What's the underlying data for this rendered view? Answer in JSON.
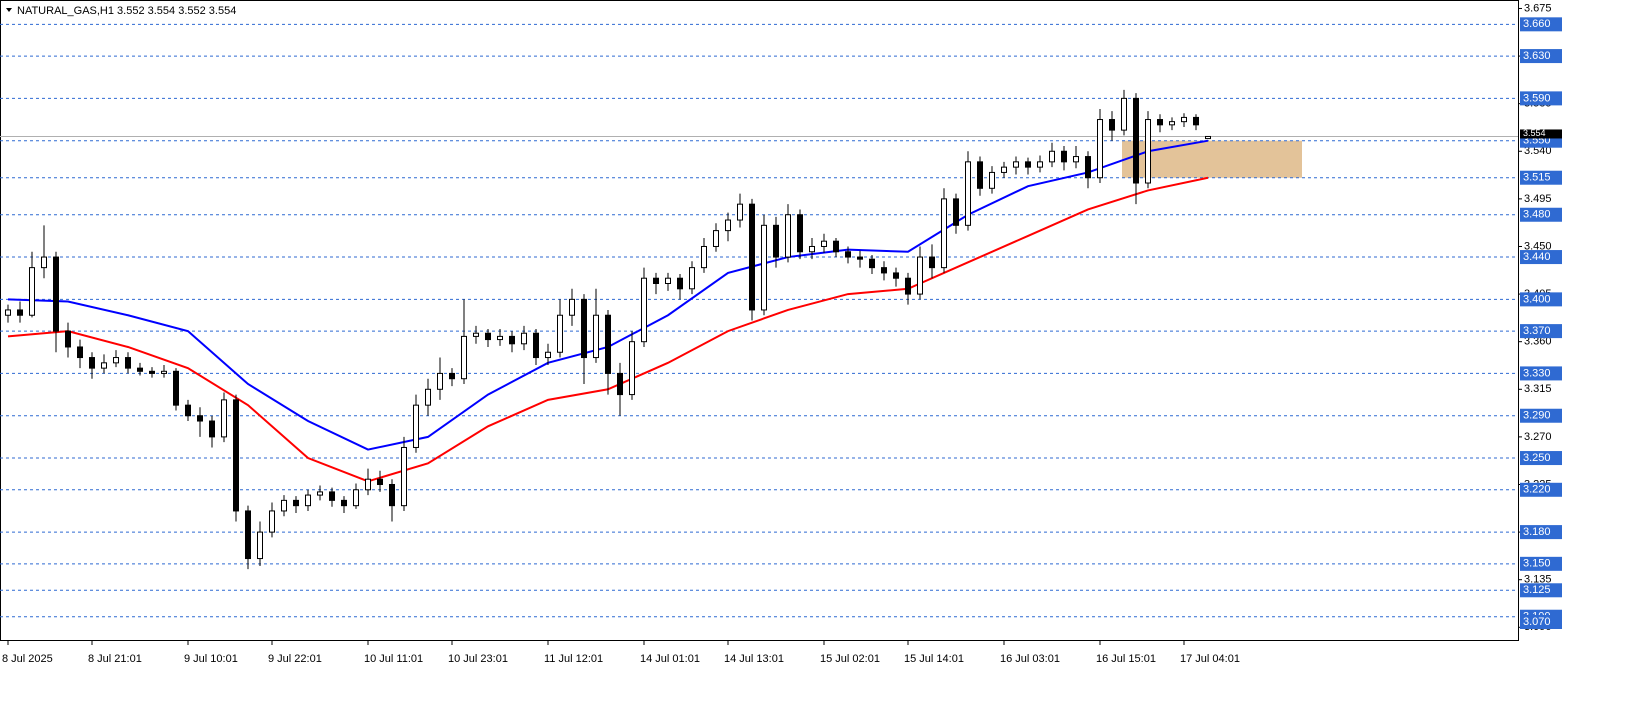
{
  "chart_data": {
    "type": "candlestick",
    "title": "NATURAL_GAS,H1  3.552 3.554 3.552 3.554",
    "ylim": [
      3.078,
      3.683
    ],
    "yticks": [
      {
        "value": 3.675,
        "label": "3.675"
      },
      {
        "value": 3.63,
        "label": "3.630"
      },
      {
        "value": 3.585,
        "label": "3.585"
      },
      {
        "value": 3.54,
        "label": "3.540"
      },
      {
        "value": 3.495,
        "label": "3.495"
      },
      {
        "value": 3.45,
        "label": "3.450"
      },
      {
        "value": 3.405,
        "label": "3.405"
      },
      {
        "value": 3.36,
        "label": "3.360"
      },
      {
        "value": 3.315,
        "label": "3.315"
      },
      {
        "value": 3.27,
        "label": "3.270"
      },
      {
        "value": 3.225,
        "label": "3.225"
      },
      {
        "value": 3.18,
        "label": "3.180"
      },
      {
        "value": 3.135,
        "label": "3.135"
      },
      {
        "value": 3.09,
        "label": "3.090"
      }
    ],
    "levels": [
      {
        "value": 3.66,
        "label": "3.660"
      },
      {
        "value": 3.63,
        "label": "3.630"
      },
      {
        "value": 3.59,
        "label": "3.590"
      },
      {
        "value": 3.55,
        "label": "3.550"
      },
      {
        "value": 3.515,
        "label": "3.515"
      },
      {
        "value": 3.48,
        "label": "3.480"
      },
      {
        "value": 3.44,
        "label": "3.440"
      },
      {
        "value": 3.4,
        "label": "3.400"
      },
      {
        "value": 3.37,
        "label": "3.370"
      },
      {
        "value": 3.33,
        "label": "3.330"
      },
      {
        "value": 3.29,
        "label": "3.290"
      },
      {
        "value": 3.25,
        "label": "3.250"
      },
      {
        "value": 3.22,
        "label": "3.220"
      },
      {
        "value": 3.18,
        "label": "3.180"
      },
      {
        "value": 3.15,
        "label": "3.150"
      },
      {
        "value": 3.125,
        "label": "3.125"
      },
      {
        "value": 3.1,
        "label": "3.100"
      },
      {
        "value": 3.07,
        "label": "3.070"
      }
    ],
    "level_color": "#2f6ad2",
    "last_price": {
      "value": 3.554,
      "label": "3.554"
    },
    "zone": {
      "low": 3.515,
      "high": 3.55,
      "color": "#deb887"
    },
    "up_color": "#ffffff",
    "down_color": "#000000",
    "categories": [
      "8 Jul 2025",
      null,
      null,
      null,
      null,
      null,
      null,
      "8 Jul 21:01",
      null,
      null,
      null,
      null,
      null,
      null,
      null,
      "9 Jul 10:01",
      null,
      null,
      null,
      null,
      null,
      null,
      "9 Jul 22:01",
      null,
      null,
      null,
      null,
      null,
      null,
      null,
      "10 Jul 11:01",
      null,
      null,
      null,
      null,
      null,
      null,
      "10 Jul 23:01",
      null,
      null,
      null,
      null,
      null,
      null,
      null,
      "11 Jul 12:01",
      null,
      null,
      null,
      null,
      null,
      null,
      null,
      "14 Jul 01:01",
      null,
      null,
      null,
      null,
      null,
      null,
      "14 Jul 13:01",
      null,
      null,
      null,
      null,
      null,
      null,
      null,
      "15 Jul 02:01",
      null,
      null,
      null,
      null,
      null,
      null,
      "15 Jul 14:01",
      null,
      null,
      null,
      null,
      null,
      null,
      null,
      "16 Jul 03:01",
      null,
      null,
      null,
      null,
      null,
      null,
      null,
      "16 Jul 15:01",
      null,
      null,
      null,
      null,
      null,
      null,
      "17 Jul 04:01",
      null,
      null
    ],
    "candles": [
      [
        3.385,
        3.395,
        3.378,
        3.39
      ],
      [
        3.39,
        3.398,
        3.378,
        3.385
      ],
      [
        3.385,
        3.445,
        3.383,
        3.43
      ],
      [
        3.43,
        3.47,
        3.42,
        3.44
      ],
      [
        3.44,
        3.445,
        3.35,
        3.37
      ],
      [
        3.37,
        3.378,
        3.345,
        3.355
      ],
      [
        3.355,
        3.362,
        3.335,
        3.345
      ],
      [
        3.345,
        3.35,
        3.325,
        3.335
      ],
      [
        3.335,
        3.348,
        3.33,
        3.34
      ],
      [
        3.34,
        3.352,
        3.336,
        3.345
      ],
      [
        3.345,
        3.35,
        3.33,
        3.335
      ],
      [
        3.335,
        3.34,
        3.328,
        3.332
      ],
      [
        3.332,
        3.336,
        3.326,
        3.33
      ],
      [
        3.33,
        3.338,
        3.326,
        3.332
      ],
      [
        3.332,
        3.335,
        3.295,
        3.3
      ],
      [
        3.3,
        3.305,
        3.285,
        3.29
      ],
      [
        3.29,
        3.298,
        3.27,
        3.285
      ],
      [
        3.285,
        3.29,
        3.26,
        3.27
      ],
      [
        3.27,
        3.312,
        3.265,
        3.305
      ],
      [
        3.305,
        3.31,
        3.19,
        3.2
      ],
      [
        3.2,
        3.205,
        3.145,
        3.155
      ],
      [
        3.155,
        3.19,
        3.148,
        3.18
      ],
      [
        3.18,
        3.208,
        3.175,
        3.2
      ],
      [
        3.2,
        3.215,
        3.195,
        3.21
      ],
      [
        3.21,
        3.214,
        3.198,
        3.205
      ],
      [
        3.205,
        3.22,
        3.2,
        3.215
      ],
      [
        3.215,
        3.224,
        3.21,
        3.218
      ],
      [
        3.218,
        3.222,
        3.204,
        3.21
      ],
      [
        3.21,
        3.214,
        3.198,
        3.205
      ],
      [
        3.205,
        3.226,
        3.202,
        3.22
      ],
      [
        3.22,
        3.24,
        3.215,
        3.23
      ],
      [
        3.23,
        3.238,
        3.218,
        3.225
      ],
      [
        3.225,
        3.23,
        3.19,
        3.205
      ],
      [
        3.205,
        3.27,
        3.2,
        3.26
      ],
      [
        3.26,
        3.31,
        3.255,
        3.3
      ],
      [
        3.3,
        3.325,
        3.29,
        3.315
      ],
      [
        3.315,
        3.345,
        3.305,
        3.33
      ],
      [
        3.33,
        3.335,
        3.318,
        3.325
      ],
      [
        3.325,
        3.4,
        3.32,
        3.365
      ],
      [
        3.365,
        3.375,
        3.358,
        3.368
      ],
      [
        3.368,
        3.372,
        3.355,
        3.362
      ],
      [
        3.362,
        3.372,
        3.356,
        3.365
      ],
      [
        3.365,
        3.37,
        3.35,
        3.358
      ],
      [
        3.358,
        3.375,
        3.352,
        3.368
      ],
      [
        3.368,
        3.372,
        3.338,
        3.345
      ],
      [
        3.345,
        3.358,
        3.338,
        3.35
      ],
      [
        3.35,
        3.4,
        3.345,
        3.385
      ],
      [
        3.385,
        3.41,
        3.375,
        3.4
      ],
      [
        3.4,
        3.405,
        3.32,
        3.345
      ],
      [
        3.345,
        3.41,
        3.34,
        3.385
      ],
      [
        3.385,
        3.39,
        3.31,
        3.33
      ],
      [
        3.33,
        3.34,
        3.29,
        3.31
      ],
      [
        3.31,
        3.37,
        3.305,
        3.36
      ],
      [
        3.36,
        3.43,
        3.355,
        3.42
      ],
      [
        3.42,
        3.425,
        3.405,
        3.415
      ],
      [
        3.415,
        3.425,
        3.408,
        3.42
      ],
      [
        3.42,
        3.424,
        3.4,
        3.41
      ],
      [
        3.41,
        3.436,
        3.405,
        3.43
      ],
      [
        3.43,
        3.458,
        3.425,
        3.45
      ],
      [
        3.45,
        3.472,
        3.445,
        3.465
      ],
      [
        3.465,
        3.482,
        3.455,
        3.475
      ],
      [
        3.475,
        3.5,
        3.468,
        3.49
      ],
      [
        3.49,
        3.495,
        3.38,
        3.39
      ],
      [
        3.39,
        3.48,
        3.385,
        3.47
      ],
      [
        3.47,
        3.478,
        3.43,
        3.44
      ],
      [
        3.44,
        3.49,
        3.435,
        3.48
      ],
      [
        3.48,
        3.485,
        3.438,
        3.445
      ],
      [
        3.445,
        3.458,
        3.438,
        3.45
      ],
      [
        3.45,
        3.462,
        3.444,
        3.455
      ],
      [
        3.455,
        3.458,
        3.44,
        3.445
      ],
      [
        3.445,
        3.45,
        3.434,
        3.44
      ],
      [
        3.44,
        3.446,
        3.43,
        3.438
      ],
      [
        3.438,
        3.442,
        3.424,
        3.43
      ],
      [
        3.43,
        3.436,
        3.418,
        3.425
      ],
      [
        3.425,
        3.43,
        3.412,
        3.42
      ],
      [
        3.42,
        3.425,
        3.395,
        3.405
      ],
      [
        3.405,
        3.45,
        3.4,
        3.44
      ],
      [
        3.44,
        3.452,
        3.42,
        3.43
      ],
      [
        3.43,
        3.505,
        3.425,
        3.495
      ],
      [
        3.495,
        3.5,
        3.462,
        3.47
      ],
      [
        3.47,
        3.54,
        3.465,
        3.53
      ],
      [
        3.53,
        3.535,
        3.498,
        3.505
      ],
      [
        3.505,
        3.526,
        3.5,
        3.52
      ],
      [
        3.52,
        3.53,
        3.515,
        3.525
      ],
      [
        3.525,
        3.535,
        3.518,
        3.53
      ],
      [
        3.53,
        3.534,
        3.518,
        3.525
      ],
      [
        3.525,
        3.536,
        3.52,
        3.53
      ],
      [
        3.53,
        3.548,
        3.525,
        3.54
      ],
      [
        3.54,
        3.545,
        3.522,
        3.53
      ],
      [
        3.53,
        3.545,
        3.524,
        3.535
      ],
      [
        3.535,
        3.54,
        3.505,
        3.515
      ],
      [
        3.515,
        3.58,
        3.51,
        3.57
      ],
      [
        3.57,
        3.578,
        3.55,
        3.56
      ],
      [
        3.56,
        3.598,
        3.555,
        3.59
      ],
      [
        3.59,
        3.595,
        3.49,
        3.51
      ],
      [
        3.51,
        3.578,
        3.505,
        3.57
      ],
      [
        3.57,
        3.575,
        3.558,
        3.565
      ],
      [
        3.565,
        3.572,
        3.56,
        3.568
      ],
      [
        3.568,
        3.576,
        3.563,
        3.572
      ],
      [
        3.572,
        3.575,
        3.56,
        3.565
      ],
      [
        3.552,
        3.554,
        3.552,
        3.554
      ]
    ],
    "series": [
      {
        "color": "#0000ff",
        "x": [
          0,
          5,
          10,
          15,
          20,
          25,
          30,
          35,
          40,
          45,
          50,
          55,
          60,
          65,
          70,
          75,
          80,
          85,
          90,
          95,
          100
        ],
        "values": [
          3.4,
          3.398,
          3.385,
          3.37,
          3.32,
          3.285,
          3.258,
          3.27,
          3.31,
          3.34,
          3.355,
          3.385,
          3.425,
          3.44,
          3.447,
          3.445,
          3.48,
          3.507,
          3.52,
          3.54,
          3.55
        ]
      },
      {
        "color": "#ff0000",
        "x": [
          0,
          5,
          10,
          15,
          20,
          25,
          30,
          35,
          40,
          45,
          50,
          55,
          60,
          65,
          70,
          75,
          80,
          85,
          90,
          95,
          100
        ],
        "values": [
          3.365,
          3.37,
          3.355,
          3.335,
          3.3,
          3.25,
          3.228,
          3.245,
          3.28,
          3.305,
          3.315,
          3.34,
          3.37,
          3.39,
          3.405,
          3.41,
          3.435,
          3.46,
          3.485,
          3.503,
          3.515
        ]
      }
    ]
  }
}
